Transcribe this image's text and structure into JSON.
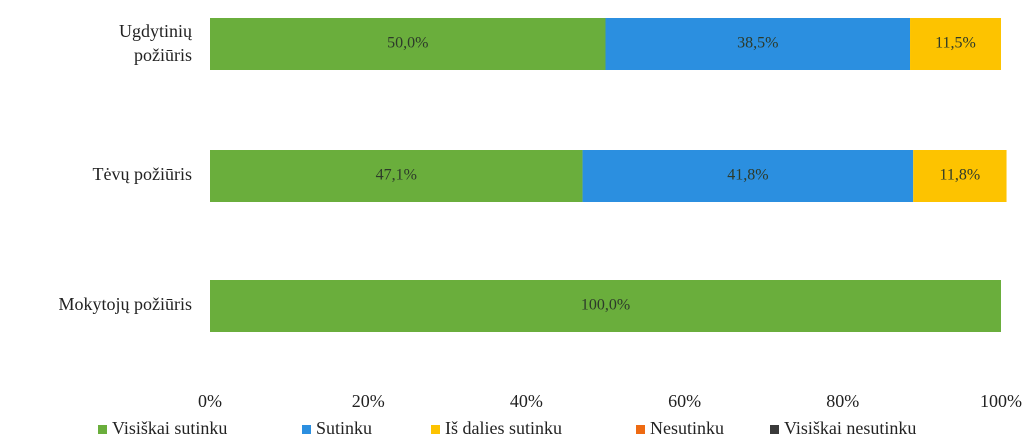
{
  "chart_data": {
    "type": "stacked_bar_horizontal",
    "categories": [
      "Ugdytinių požiūris",
      "Tėvų požiūris",
      "Mokytojų požiūris"
    ],
    "series": [
      {
        "name": "Visiškai sutinku",
        "color": "#6aae3c",
        "values": [
          50.0,
          47.1,
          100.0
        ],
        "value_labels": [
          "50,0%",
          "47,1%",
          "100,0%"
        ]
      },
      {
        "name": "Sutinku",
        "color": "#2b8fe0",
        "values": [
          38.5,
          41.8,
          0
        ],
        "value_labels": [
          "38,5%",
          "41,8%",
          null
        ]
      },
      {
        "name": "Iš dalies sutinku",
        "color": "#fdc300",
        "values": [
          11.5,
          11.8,
          0
        ],
        "value_labels": [
          "11,5%",
          "11,8%",
          null
        ]
      },
      {
        "name": "Nesutinku",
        "color": "#ee6a12",
        "values": [
          0,
          0,
          0
        ],
        "value_labels": [
          null,
          null,
          null
        ]
      },
      {
        "name": "Visiškai nesutinku",
        "color": "#3a3a3a",
        "values": [
          0,
          0,
          0
        ],
        "value_labels": [
          null,
          null,
          null
        ]
      }
    ],
    "xlim": [
      0,
      100
    ],
    "xticks": [
      {
        "value": 0,
        "label": "0%"
      },
      {
        "value": 20,
        "label": "20%"
      },
      {
        "value": 40,
        "label": "40%"
      },
      {
        "value": 60,
        "label": "60%"
      },
      {
        "value": 80,
        "label": "80%"
      },
      {
        "value": 100,
        "label": "100%"
      }
    ],
    "legend": "bottom"
  }
}
